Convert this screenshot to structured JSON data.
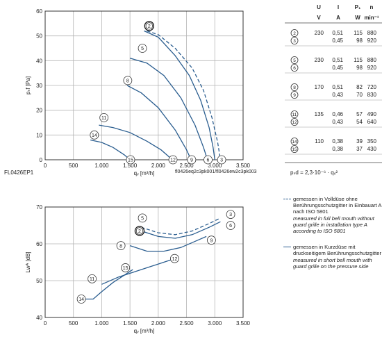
{
  "chart_data": [
    {
      "type": "line",
      "xlabel": "qᵥ [m³/h]",
      "ylabel": "pₛf [Pa]",
      "xlim": [
        0,
        3500
      ],
      "ylim": [
        0,
        60
      ],
      "xticks": [
        0,
        500,
        1000,
        1500,
        2000,
        2500,
        3000,
        3500
      ],
      "xtick_labels": [
        "0",
        "500",
        "1.000",
        "1.500",
        "2.000",
        "2.500",
        "3.000",
        "3.500"
      ],
      "yticks": [
        0,
        10,
        20,
        30,
        40,
        50,
        60
      ],
      "grid": true,
      "footer_left": "FL0426EP1",
      "footer_right": "fl0426eq2c3pk001/fl0426ew2c3pk003",
      "series": [
        {
          "name": "2",
          "style": "solid",
          "x": [
            1750,
            2000,
            2300,
            2550,
            2750,
            2900,
            2970,
            3000
          ],
          "y": [
            52,
            49.5,
            42,
            34,
            24,
            13,
            5,
            0
          ]
        },
        {
          "name": "3",
          "style": "dashed",
          "x": [
            1800,
            2000,
            2300,
            2600,
            2800,
            2950,
            3050,
            3100
          ],
          "y": [
            52,
            50.5,
            45,
            37,
            28,
            17,
            7,
            0
          ]
        },
        {
          "name": "6",
          "style": "solid",
          "x": [
            1500,
            1800,
            2100,
            2400,
            2650,
            2800,
            2870
          ],
          "y": [
            41,
            39,
            34,
            25,
            14,
            5,
            0
          ]
        },
        {
          "name": "9",
          "style": "solid",
          "x": [
            1450,
            1700,
            2000,
            2300,
            2500,
            2580
          ],
          "y": [
            30,
            27,
            21,
            12,
            4,
            0
          ]
        },
        {
          "name": "12",
          "style": "solid",
          "x": [
            950,
            1200,
            1500,
            1800,
            2050,
            2200,
            2250
          ],
          "y": [
            14,
            13,
            11,
            7.5,
            4,
            1,
            0
          ]
        },
        {
          "name": "15",
          "style": "solid",
          "x": [
            800,
            1000,
            1200,
            1400,
            1500
          ],
          "y": [
            8,
            7,
            5,
            2,
            0
          ]
        }
      ],
      "markers": [
        {
          "label": "2",
          "x": 1840,
          "y": 54,
          "circle": "double"
        },
        {
          "label": "5",
          "x": 1720,
          "y": 45
        },
        {
          "label": "8",
          "x": 1460,
          "y": 32
        },
        {
          "label": "11",
          "x": 1040,
          "y": 17
        },
        {
          "label": "14",
          "x": 870,
          "y": 10
        },
        {
          "label": "15",
          "x": 1510,
          "y": 0
        },
        {
          "label": "12",
          "x": 2260,
          "y": 0
        },
        {
          "label": "9",
          "x": 2590,
          "y": 0
        },
        {
          "label": "6",
          "x": 2880,
          "y": 0
        },
        {
          "label": "3",
          "x": 3120,
          "y": 0
        }
      ]
    },
    {
      "type": "line",
      "xlabel": "qᵥ [m³/h]",
      "ylabel": "Lwᴬ [dB]",
      "xlim": [
        0,
        3500
      ],
      "ylim": [
        40,
        70
      ],
      "xticks": [
        0,
        500,
        1000,
        1500,
        2000,
        2500,
        3000,
        3500
      ],
      "xtick_labels": [
        "0",
        "500",
        "1.000",
        "1.500",
        "2.000",
        "2.500",
        "3.000",
        "3.500"
      ],
      "yticks": [
        40,
        50,
        60,
        70
      ],
      "grid": true,
      "series": [
        {
          "name": "2",
          "style": "solid",
          "x": [
            1700,
            2000,
            2300,
            2600,
            2900,
            3100
          ],
          "y": [
            63.5,
            62,
            61.5,
            62.5,
            64.5,
            66
          ]
        },
        {
          "name": "3",
          "style": "dashed",
          "x": [
            1700,
            2000,
            2300,
            2600,
            2900,
            3100
          ],
          "y": [
            64.5,
            63,
            62.5,
            63.5,
            65.5,
            67
          ]
        },
        {
          "name": "6",
          "style": "solid",
          "x": [
            1500,
            1800,
            2100,
            2400,
            2700,
            2850
          ],
          "y": [
            59.5,
            58,
            58,
            59,
            61,
            62
          ]
        },
        {
          "name": "9",
          "style": "solid",
          "x": [
            1000,
            1300,
            1600,
            1900,
            2200,
            2300
          ],
          "y": [
            49,
            51,
            52.5,
            54,
            55.5,
            56
          ]
        },
        {
          "name": "12",
          "style": "solid",
          "x": [
            700,
            850,
            1000,
            1200,
            1400,
            1550
          ],
          "y": [
            45,
            45,
            47,
            49.5,
            51.5,
            53
          ]
        }
      ],
      "markers": [
        {
          "label": "5",
          "x": 1720,
          "y": 67
        },
        {
          "label": "2",
          "x": 1670,
          "y": 63.5,
          "circle": "double"
        },
        {
          "label": "3",
          "x": 3280,
          "y": 68
        },
        {
          "label": "6",
          "x": 3280,
          "y": 65
        },
        {
          "label": "9",
          "x": 2940,
          "y": 61
        },
        {
          "label": "8",
          "x": 1340,
          "y": 59.5
        },
        {
          "label": "12",
          "x": 2290,
          "y": 56
        },
        {
          "label": "15",
          "x": 1420,
          "y": 53.5
        },
        {
          "label": "11",
          "x": 830,
          "y": 50.5
        },
        {
          "label": "14",
          "x": 640,
          "y": 45
        }
      ]
    },
    {
      "type": "table",
      "headers": [
        "",
        "U",
        "I",
        "P₁",
        "n"
      ],
      "units": [
        "",
        "V",
        "A",
        "W",
        "min⁻¹"
      ],
      "groups": [
        {
          "rows": [
            [
              "2",
              "230",
              "0,51",
              "115",
              "880"
            ],
            [
              "3",
              "",
              "0,45",
              "98",
              "920"
            ]
          ]
        },
        {
          "rows": [
            [
              "5",
              "230",
              "0,51",
              "115",
              "880"
            ],
            [
              "6",
              "",
              "0,45",
              "98",
              "920"
            ]
          ]
        },
        {
          "rows": [
            [
              "8",
              "170",
              "0,51",
              "82",
              "720"
            ],
            [
              "9",
              "",
              "0,43",
              "70",
              "830"
            ]
          ]
        },
        {
          "rows": [
            [
              "11",
              "135",
              "0,46",
              "57",
              "490"
            ],
            [
              "12",
              "",
              "0,43",
              "54",
              "640"
            ]
          ]
        },
        {
          "rows": [
            [
              "14",
              "110",
              "0,38",
              "39",
              "350"
            ],
            [
              "15",
              "",
              "0,38",
              "37",
              "430"
            ]
          ]
        }
      ],
      "formula": "pₛd = 2,3·10⁻⁶ · qᵥ²"
    }
  ],
  "legend": [
    {
      "style": "dashed",
      "color": "#2a5d8f",
      "de": "gemessen in Volldüse ohne Berührungsschutzgitter in Einbauart A nach ISO 5801",
      "en": "measured in full bell mouth without guard grille in installation type A according to ISO 5801"
    },
    {
      "style": "solid",
      "color": "#2a5d8f",
      "de": "gemessen in Kurzdüse mit druckseitigem Berührungsschutzgitter",
      "en": "measured in short bell mouth with guard grille on the pressure side"
    }
  ],
  "colors": {
    "curve": "#2a5d8f",
    "grid": "#b5b5b5",
    "frame": "#333333",
    "marker_fill": "#ffffff"
  }
}
